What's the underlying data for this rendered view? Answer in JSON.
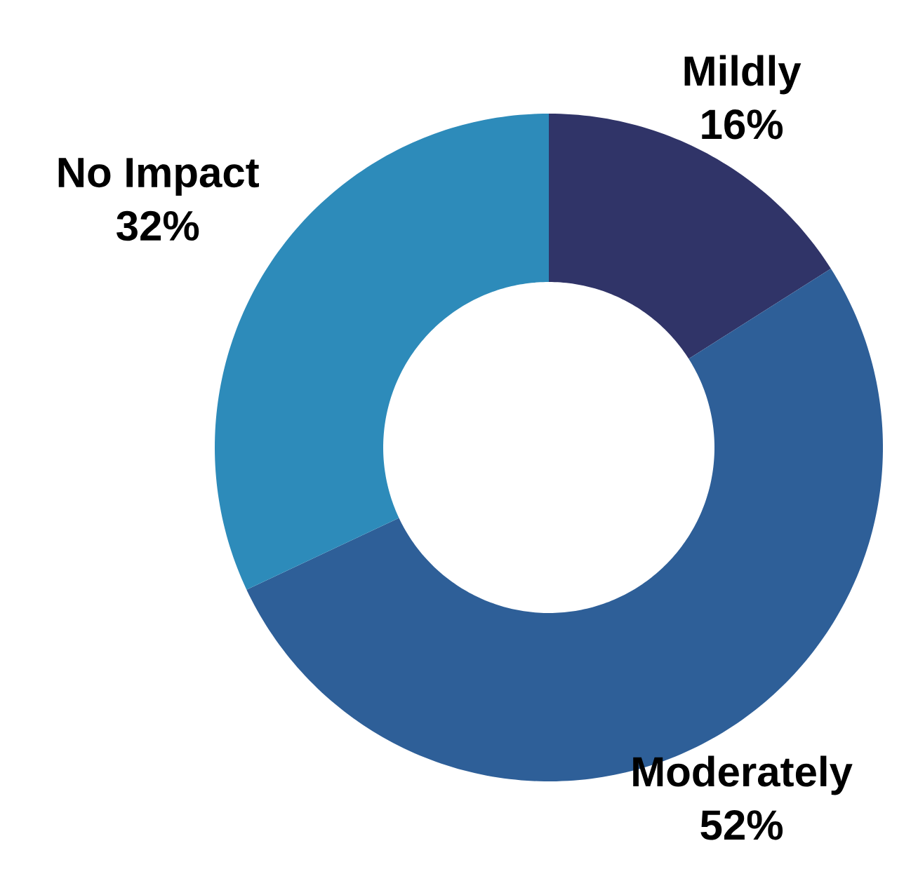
{
  "chart_data": {
    "type": "donut",
    "categories": [
      "Mildly",
      "Moderately",
      "No Impact"
    ],
    "values": [
      16,
      52,
      32
    ],
    "value_labels": [
      "16%",
      "52%",
      "32%"
    ],
    "colors": [
      "#303468",
      "#2e5f98",
      "#2d8bba"
    ]
  }
}
